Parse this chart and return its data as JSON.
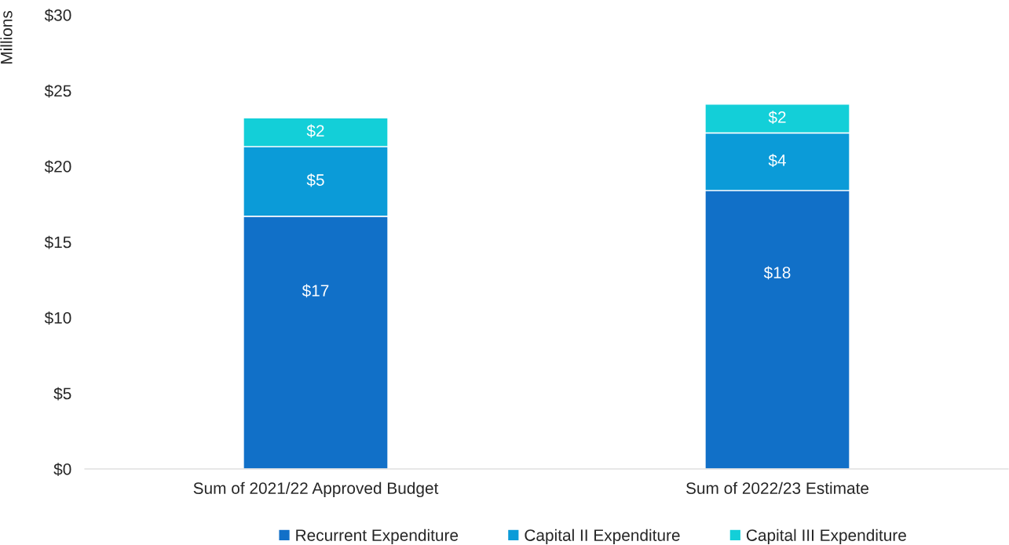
{
  "chart_data": {
    "type": "bar",
    "stacked": true,
    "ylabel": "Millions",
    "categories": [
      "Sum of 2021/22 Approved Budget",
      "Sum of 2022/23 Estimate"
    ],
    "series": [
      {
        "name": "Recurrent Expenditure",
        "color": "#1170c8",
        "values": [
          16.7,
          18.4
        ],
        "value_labels": [
          "$17",
          "$18"
        ]
      },
      {
        "name": "Capital II Expenditure",
        "color": "#0b9bd8",
        "values": [
          4.6,
          3.8
        ],
        "value_labels": [
          "$5",
          "$4"
        ]
      },
      {
        "name": "Capital III Expenditure",
        "color": "#13cfd8",
        "values": [
          1.9,
          1.9
        ],
        "value_labels": [
          "$2",
          "$2"
        ]
      }
    ],
    "ylim": [
      0,
      30
    ],
    "yticks": [
      {
        "value": 0,
        "label": "$0"
      },
      {
        "value": 5,
        "label": "$5"
      },
      {
        "value": 10,
        "label": "$10"
      },
      {
        "value": 15,
        "label": "$15"
      },
      {
        "value": 20,
        "label": "$20"
      },
      {
        "value": 25,
        "label": "$25"
      },
      {
        "value": 30,
        "label": "$30"
      }
    ],
    "grid": false,
    "legend": "bottom"
  }
}
